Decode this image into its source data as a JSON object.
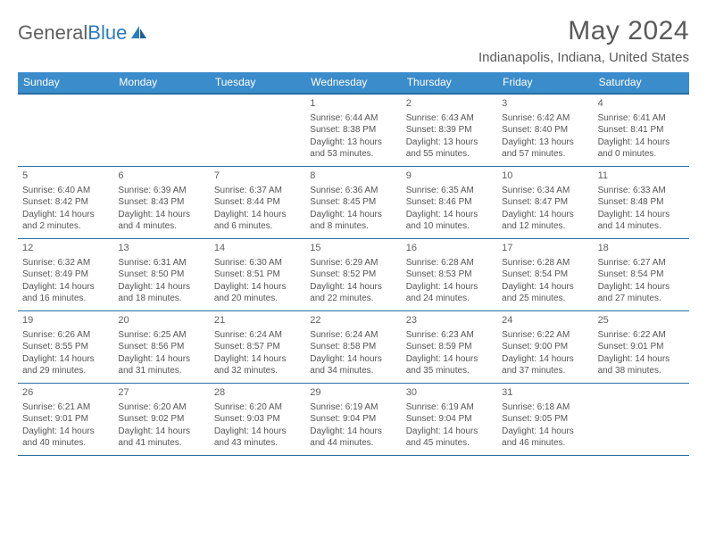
{
  "logo": {
    "text1": "General",
    "text2": "Blue"
  },
  "title": "May 2024",
  "location": "Indianapolis, Indiana, United States",
  "weekdays": [
    "Sunday",
    "Monday",
    "Tuesday",
    "Wednesday",
    "Thursday",
    "Friday",
    "Saturday"
  ],
  "colors": {
    "header_bg": "#3b8ccb",
    "header_border": "#2a6fa5",
    "text": "#555555"
  },
  "weeks": [
    [
      {
        "num": "",
        "sunrise": "",
        "sunset": "",
        "daylight": ""
      },
      {
        "num": "",
        "sunrise": "",
        "sunset": "",
        "daylight": ""
      },
      {
        "num": "",
        "sunrise": "",
        "sunset": "",
        "daylight": ""
      },
      {
        "num": "1",
        "sunrise": "Sunrise: 6:44 AM",
        "sunset": "Sunset: 8:38 PM",
        "daylight": "Daylight: 13 hours and 53 minutes."
      },
      {
        "num": "2",
        "sunrise": "Sunrise: 6:43 AM",
        "sunset": "Sunset: 8:39 PM",
        "daylight": "Daylight: 13 hours and 55 minutes."
      },
      {
        "num": "3",
        "sunrise": "Sunrise: 6:42 AM",
        "sunset": "Sunset: 8:40 PM",
        "daylight": "Daylight: 13 hours and 57 minutes."
      },
      {
        "num": "4",
        "sunrise": "Sunrise: 6:41 AM",
        "sunset": "Sunset: 8:41 PM",
        "daylight": "Daylight: 14 hours and 0 minutes."
      }
    ],
    [
      {
        "num": "5",
        "sunrise": "Sunrise: 6:40 AM",
        "sunset": "Sunset: 8:42 PM",
        "daylight": "Daylight: 14 hours and 2 minutes."
      },
      {
        "num": "6",
        "sunrise": "Sunrise: 6:39 AM",
        "sunset": "Sunset: 8:43 PM",
        "daylight": "Daylight: 14 hours and 4 minutes."
      },
      {
        "num": "7",
        "sunrise": "Sunrise: 6:37 AM",
        "sunset": "Sunset: 8:44 PM",
        "daylight": "Daylight: 14 hours and 6 minutes."
      },
      {
        "num": "8",
        "sunrise": "Sunrise: 6:36 AM",
        "sunset": "Sunset: 8:45 PM",
        "daylight": "Daylight: 14 hours and 8 minutes."
      },
      {
        "num": "9",
        "sunrise": "Sunrise: 6:35 AM",
        "sunset": "Sunset: 8:46 PM",
        "daylight": "Daylight: 14 hours and 10 minutes."
      },
      {
        "num": "10",
        "sunrise": "Sunrise: 6:34 AM",
        "sunset": "Sunset: 8:47 PM",
        "daylight": "Daylight: 14 hours and 12 minutes."
      },
      {
        "num": "11",
        "sunrise": "Sunrise: 6:33 AM",
        "sunset": "Sunset: 8:48 PM",
        "daylight": "Daylight: 14 hours and 14 minutes."
      }
    ],
    [
      {
        "num": "12",
        "sunrise": "Sunrise: 6:32 AM",
        "sunset": "Sunset: 8:49 PM",
        "daylight": "Daylight: 14 hours and 16 minutes."
      },
      {
        "num": "13",
        "sunrise": "Sunrise: 6:31 AM",
        "sunset": "Sunset: 8:50 PM",
        "daylight": "Daylight: 14 hours and 18 minutes."
      },
      {
        "num": "14",
        "sunrise": "Sunrise: 6:30 AM",
        "sunset": "Sunset: 8:51 PM",
        "daylight": "Daylight: 14 hours and 20 minutes."
      },
      {
        "num": "15",
        "sunrise": "Sunrise: 6:29 AM",
        "sunset": "Sunset: 8:52 PM",
        "daylight": "Daylight: 14 hours and 22 minutes."
      },
      {
        "num": "16",
        "sunrise": "Sunrise: 6:28 AM",
        "sunset": "Sunset: 8:53 PM",
        "daylight": "Daylight: 14 hours and 24 minutes."
      },
      {
        "num": "17",
        "sunrise": "Sunrise: 6:28 AM",
        "sunset": "Sunset: 8:54 PM",
        "daylight": "Daylight: 14 hours and 25 minutes."
      },
      {
        "num": "18",
        "sunrise": "Sunrise: 6:27 AM",
        "sunset": "Sunset: 8:54 PM",
        "daylight": "Daylight: 14 hours and 27 minutes."
      }
    ],
    [
      {
        "num": "19",
        "sunrise": "Sunrise: 6:26 AM",
        "sunset": "Sunset: 8:55 PM",
        "daylight": "Daylight: 14 hours and 29 minutes."
      },
      {
        "num": "20",
        "sunrise": "Sunrise: 6:25 AM",
        "sunset": "Sunset: 8:56 PM",
        "daylight": "Daylight: 14 hours and 31 minutes."
      },
      {
        "num": "21",
        "sunrise": "Sunrise: 6:24 AM",
        "sunset": "Sunset: 8:57 PM",
        "daylight": "Daylight: 14 hours and 32 minutes."
      },
      {
        "num": "22",
        "sunrise": "Sunrise: 6:24 AM",
        "sunset": "Sunset: 8:58 PM",
        "daylight": "Daylight: 14 hours and 34 minutes."
      },
      {
        "num": "23",
        "sunrise": "Sunrise: 6:23 AM",
        "sunset": "Sunset: 8:59 PM",
        "daylight": "Daylight: 14 hours and 35 minutes."
      },
      {
        "num": "24",
        "sunrise": "Sunrise: 6:22 AM",
        "sunset": "Sunset: 9:00 PM",
        "daylight": "Daylight: 14 hours and 37 minutes."
      },
      {
        "num": "25",
        "sunrise": "Sunrise: 6:22 AM",
        "sunset": "Sunset: 9:01 PM",
        "daylight": "Daylight: 14 hours and 38 minutes."
      }
    ],
    [
      {
        "num": "26",
        "sunrise": "Sunrise: 6:21 AM",
        "sunset": "Sunset: 9:01 PM",
        "daylight": "Daylight: 14 hours and 40 minutes."
      },
      {
        "num": "27",
        "sunrise": "Sunrise: 6:20 AM",
        "sunset": "Sunset: 9:02 PM",
        "daylight": "Daylight: 14 hours and 41 minutes."
      },
      {
        "num": "28",
        "sunrise": "Sunrise: 6:20 AM",
        "sunset": "Sunset: 9:03 PM",
        "daylight": "Daylight: 14 hours and 43 minutes."
      },
      {
        "num": "29",
        "sunrise": "Sunrise: 6:19 AM",
        "sunset": "Sunset: 9:04 PM",
        "daylight": "Daylight: 14 hours and 44 minutes."
      },
      {
        "num": "30",
        "sunrise": "Sunrise: 6:19 AM",
        "sunset": "Sunset: 9:04 PM",
        "daylight": "Daylight: 14 hours and 45 minutes."
      },
      {
        "num": "31",
        "sunrise": "Sunrise: 6:18 AM",
        "sunset": "Sunset: 9:05 PM",
        "daylight": "Daylight: 14 hours and 46 minutes."
      },
      {
        "num": "",
        "sunrise": "",
        "sunset": "",
        "daylight": ""
      }
    ]
  ]
}
